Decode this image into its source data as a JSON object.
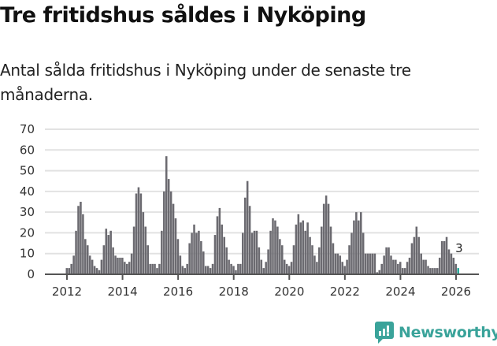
{
  "title": "Tre fritidshus såldes i Nyköping",
  "subtitle": "Antal sålda fritidshus i Nyköping under de senaste tre månaderna.",
  "brand": {
    "name": "Newsworthy",
    "color": "#3aa39a"
  },
  "colors": {
    "bar": "#6b6a70",
    "highlight": "#2aa89a",
    "grid": "#e2e2e2",
    "axis": "#555555"
  },
  "chart_data": {
    "type": "bar",
    "title": "Tre fritidshus såldes i Nyköping",
    "subtitle": "Antal sålda fritidshus i Nyköping under de senaste tre månaderna.",
    "xlabel": "",
    "ylabel": "",
    "ylim": [
      0,
      70
    ],
    "yticks": [
      0,
      10,
      20,
      30,
      40,
      50,
      60,
      70
    ],
    "xticks": [
      "2012",
      "2014",
      "2016",
      "2018",
      "2020",
      "2022",
      "2024",
      "2026"
    ],
    "grid": true,
    "legend": null,
    "frequency": "monthly",
    "start": "2012-01",
    "annotation": {
      "label": "3",
      "at": "last"
    },
    "values": [
      3,
      3,
      5,
      9,
      21,
      33,
      35,
      29,
      17,
      14,
      9,
      7,
      4,
      3,
      2,
      7,
      14,
      22,
      19,
      21,
      13,
      9,
      8,
      8,
      8,
      6,
      5,
      6,
      10,
      23,
      39,
      42,
      39,
      30,
      23,
      14,
      5,
      5,
      5,
      3,
      5,
      21,
      40,
      57,
      46,
      40,
      34,
      27,
      17,
      9,
      4,
      3,
      5,
      15,
      20,
      24,
      20,
      21,
      16,
      11,
      4,
      4,
      3,
      5,
      19,
      28,
      32,
      24,
      18,
      13,
      7,
      5,
      4,
      2,
      5,
      5,
      20,
      37,
      45,
      33,
      20,
      21,
      21,
      13,
      7,
      3,
      6,
      12,
      21,
      27,
      26,
      23,
      17,
      14,
      7,
      5,
      4,
      6,
      14,
      24,
      29,
      25,
      26,
      21,
      25,
      18,
      14,
      9,
      6,
      13,
      23,
      34,
      38,
      34,
      23,
      15,
      10,
      10,
      9,
      6,
      4,
      7,
      14,
      20,
      26,
      30,
      26,
      30,
      20,
      10,
      10,
      10,
      10,
      10,
      1,
      2,
      5,
      9,
      13,
      13,
      9,
      7,
      7,
      5,
      6,
      3,
      3,
      6,
      8,
      15,
      18,
      23,
      18,
      10,
      7,
      7,
      4,
      3,
      3,
      3,
      3,
      8,
      16,
      16,
      18,
      12,
      10,
      8,
      5,
      3
    ]
  }
}
